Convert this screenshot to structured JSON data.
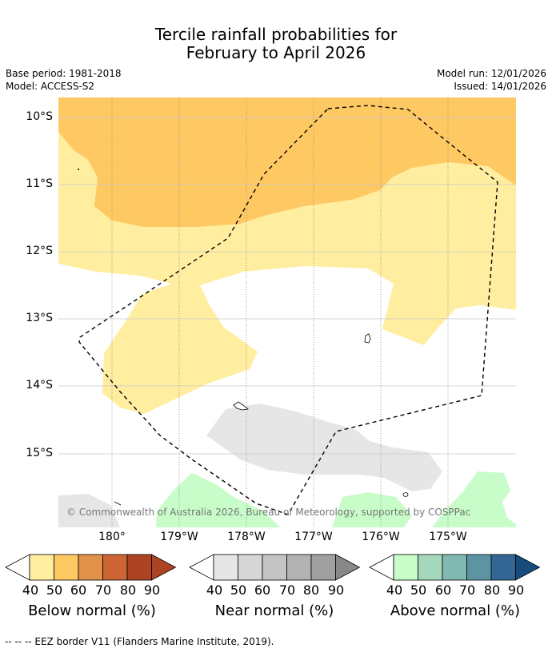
{
  "title_line1": "Tercile rainfall probabilities for",
  "title_line2": "February to April 2026",
  "meta": {
    "base_period": "Base period: 1981-2018",
    "model": "Model: ACCESS-S2",
    "model_run": "Model run: 12/01/2026",
    "issued": "Issued: 14/01/2026"
  },
  "map": {
    "lat_labels": [
      "10°S",
      "11°S",
      "12°S",
      "13°S",
      "14°S",
      "15°S"
    ],
    "lon_labels": [
      "180°",
      "179°W",
      "178°W",
      "177°W",
      "176°W",
      "175°W"
    ],
    "copyright": "© Commonwealth of Australia 2026, Bureau of Meteorology, supported by COSPPac"
  },
  "legend": {
    "below": {
      "title": "Below normal (%)",
      "ticks": [
        "40",
        "50",
        "60",
        "70",
        "80",
        "90"
      ],
      "colors": [
        "#ffeda0",
        "#fec863",
        "#e0924a",
        "#cd6534",
        "#ac4424",
        "#ac4424"
      ]
    },
    "near": {
      "title": "Near normal (%)",
      "ticks": [
        "40",
        "50",
        "60",
        "70",
        "80",
        "90"
      ],
      "colors": [
        "#e6e6e6",
        "#d6d6d6",
        "#c4c4c4",
        "#b2b2b2",
        "#a0a0a0",
        "#888888"
      ]
    },
    "above": {
      "title": "Above normal (%)",
      "ticks": [
        "40",
        "50",
        "60",
        "70",
        "80",
        "90"
      ],
      "colors": [
        "#c8fcc8",
        "#a6d8bc",
        "#82b8b2",
        "#5c94a4",
        "#336694",
        "#164b7c"
      ]
    }
  },
  "footer": "--  --  -- EEZ border V11 (Flanders Marine Institute, 2019)."
}
